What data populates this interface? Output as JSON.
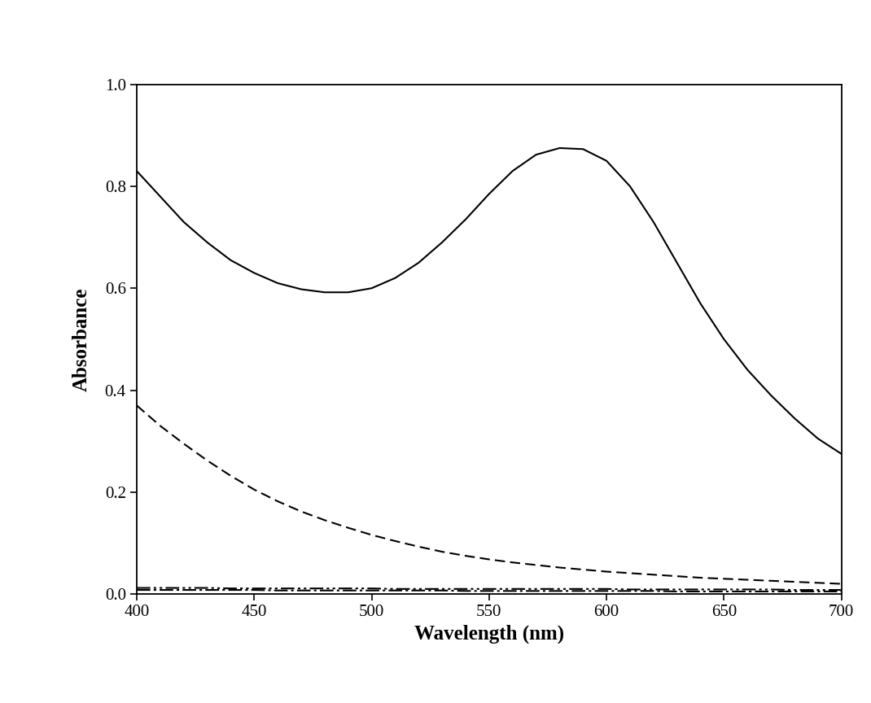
{
  "chart_data": {
    "type": "line",
    "x_label": "Wavelength (nm)",
    "y_label": "Absorbance",
    "x": [
      400,
      410,
      420,
      430,
      440,
      450,
      460,
      470,
      480,
      490,
      500,
      510,
      520,
      530,
      540,
      550,
      560,
      570,
      580,
      590,
      600,
      610,
      620,
      630,
      640,
      650,
      660,
      670,
      680,
      690,
      700
    ],
    "series": [
      {
        "color": "#000000",
        "line_style": "solid",
        "values": [
          0.83,
          0.78,
          0.73,
          0.69,
          0.655,
          0.63,
          0.61,
          0.598,
          0.592,
          0.592,
          0.6,
          0.62,
          0.65,
          0.69,
          0.735,
          0.785,
          0.83,
          0.862,
          0.875,
          0.873,
          0.85,
          0.8,
          0.73,
          0.65,
          0.57,
          0.5,
          0.44,
          0.39,
          0.345,
          0.305,
          0.275
        ]
      },
      {
        "color": "#000000",
        "line_style": "dashed",
        "values": [
          0.37,
          0.33,
          0.295,
          0.262,
          0.232,
          0.205,
          0.182,
          0.162,
          0.145,
          0.13,
          0.116,
          0.104,
          0.093,
          0.083,
          0.075,
          0.068,
          0.062,
          0.057,
          0.052,
          0.048,
          0.044,
          0.041,
          0.038,
          0.035,
          0.032,
          0.03,
          0.028,
          0.026,
          0.024,
          0.022,
          0.02
        ]
      },
      {
        "color": "#000000",
        "line_style": "dashdotdot",
        "values": [
          0.012,
          0.012,
          0.012,
          0.012,
          0.011,
          0.011,
          0.011,
          0.011,
          0.011,
          0.011,
          0.011,
          0.01,
          0.01,
          0.01,
          0.01,
          0.01,
          0.01,
          0.01,
          0.01,
          0.01,
          0.01,
          0.009,
          0.009,
          0.009,
          0.009,
          0.009,
          0.009,
          0.009,
          0.008,
          0.008,
          0.008
        ]
      },
      {
        "color": "#000000",
        "line_style": "dashdot",
        "values": [
          0.008,
          0.008,
          0.008,
          0.008,
          0.008,
          0.008,
          0.007,
          0.007,
          0.007,
          0.007,
          0.007,
          0.007,
          0.007,
          0.007,
          0.006,
          0.006,
          0.006,
          0.006,
          0.006,
          0.006,
          0.006,
          0.006,
          0.006,
          0.005,
          0.005,
          0.005,
          0.005,
          0.005,
          0.005,
          0.005,
          0.005
        ]
      }
    ],
    "xlim": [
      400,
      700
    ],
    "xticks": [
      400,
      450,
      500,
      550,
      600,
      650,
      700
    ],
    "ylim": [
      0.0,
      1.0
    ],
    "yticks": [
      0.0,
      0.2,
      0.4,
      0.6,
      0.8,
      1.0
    ],
    "grid": false
  }
}
